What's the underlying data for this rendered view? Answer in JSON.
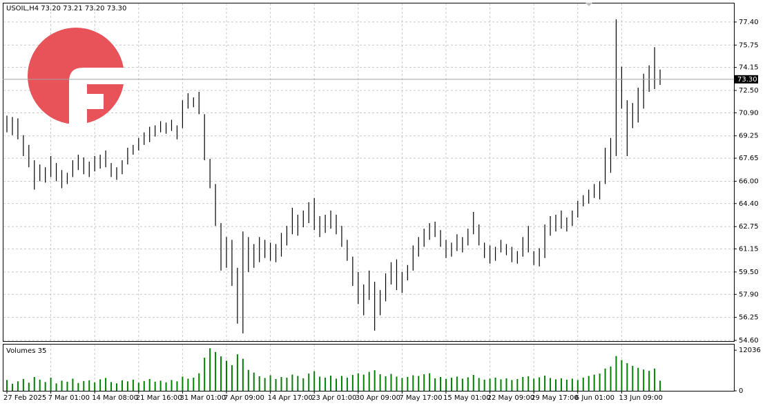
{
  "chart_data": [
    {
      "type": "ohlc",
      "title": "USOIL,H4  73.20 73.21 73.20 73.30",
      "color": "#000000",
      "grid": true,
      "categories": [
        "27 Feb 2025",
        null,
        null,
        null,
        null,
        null,
        null,
        null,
        "7 Mar 01:00",
        null,
        null,
        null,
        null,
        null,
        null,
        null,
        "14 Mar 08:00",
        null,
        null,
        null,
        null,
        null,
        null,
        null,
        "21 Mar 16:00",
        null,
        null,
        null,
        null,
        null,
        null,
        null,
        "31 Mar 01:00",
        null,
        null,
        null,
        null,
        null,
        null,
        null,
        "7 Apr 09:00",
        null,
        null,
        null,
        null,
        null,
        null,
        null,
        "14 Apr 17:00",
        null,
        null,
        null,
        null,
        null,
        null,
        null,
        "23 Apr 01:00",
        null,
        null,
        null,
        null,
        null,
        null,
        null,
        "30 Apr 09:00",
        null,
        null,
        null,
        null,
        null,
        null,
        null,
        "7 May 17:00",
        null,
        null,
        null,
        null,
        null,
        null,
        null,
        "15 May 01:00",
        null,
        null,
        null,
        null,
        null,
        null,
        null,
        "22 May 09:00",
        null,
        null,
        null,
        null,
        null,
        null,
        null,
        "29 May 17:00",
        null,
        null,
        null,
        null,
        null,
        null,
        null,
        "6 Jun 01:00",
        null,
        null,
        null,
        null,
        null,
        null,
        null,
        "13 Jun 09:00",
        null,
        null,
        null,
        null,
        null,
        null,
        null
      ],
      "high": [
        70.7,
        70.6,
        70.5,
        69.3,
        68.6,
        67.5,
        67.2,
        67.0,
        67.8,
        67.3,
        66.8,
        66.6,
        67.5,
        67.9,
        67.7,
        67.4,
        67.8,
        67.9,
        68.2,
        67.3,
        67.0,
        67.5,
        68.4,
        68.6,
        69.1,
        69.5,
        69.9,
        70.0,
        70.3,
        70.2,
        70.4,
        70.0,
        71.8,
        72.3,
        72.0,
        72.4,
        70.8,
        67.6,
        65.8,
        63.0,
        62.0,
        61.8,
        59.8,
        62.4,
        62.0,
        61.5,
        62.0,
        61.8,
        61.6,
        61.5,
        62.3,
        62.8,
        64.1,
        63.6,
        63.9,
        64.5,
        64.8,
        63.5,
        63.6,
        63.9,
        63.6,
        62.8,
        61.8,
        60.6,
        59.5,
        58.6,
        59.6,
        58.8,
        58.2,
        59.4,
        60.2,
        60.4,
        59.5,
        60.0,
        61.4,
        62.0,
        62.6,
        63.0,
        63.1,
        62.5,
        61.8,
        61.6,
        62.2,
        62.0,
        62.6,
        63.8,
        62.9,
        61.6,
        61.4,
        61.3,
        61.8,
        61.5,
        61.3,
        61.0,
        62.0,
        62.8,
        61.0,
        61.2,
        62.9,
        63.5,
        63.6,
        63.9,
        63.4,
        63.9,
        64.6,
        65.0,
        65.4,
        65.8,
        66.0,
        68.4,
        69.1,
        77.6,
        74.2,
        71.8,
        71.6,
        72.7,
        73.7,
        74.3,
        75.6,
        74.0
      ],
      "low": [
        69.5,
        69.3,
        69.0,
        67.8,
        67.0,
        65.4,
        66.0,
        65.9,
        66.3,
        66.0,
        65.5,
        65.8,
        66.3,
        66.8,
        66.5,
        66.3,
        66.7,
        66.9,
        67.0,
        66.3,
        66.1,
        66.5,
        67.2,
        67.9,
        68.2,
        68.6,
        68.8,
        69.2,
        69.5,
        69.4,
        69.6,
        69.0,
        69.8,
        71.2,
        71.3,
        70.8,
        67.5,
        65.5,
        62.8,
        59.6,
        59.8,
        58.5,
        55.8,
        55.1,
        59.5,
        59.8,
        60.2,
        60.5,
        60.3,
        60.2,
        60.6,
        61.4,
        62.2,
        62.1,
        62.7,
        63.0,
        62.5,
        62.0,
        62.3,
        62.6,
        62.2,
        61.3,
        60.3,
        58.5,
        57.2,
        56.4,
        57.5,
        55.3,
        56.4,
        57.4,
        58.6,
        58.2,
        58.0,
        58.9,
        59.6,
        60.6,
        61.3,
        61.8,
        62.0,
        61.3,
        60.5,
        60.6,
        61.0,
        60.9,
        61.4,
        62.2,
        61.4,
        60.5,
        60.1,
        60.3,
        60.9,
        60.7,
        60.2,
        60.1,
        60.6,
        60.9,
        60.0,
        59.9,
        60.5,
        62.1,
        62.4,
        62.6,
        62.4,
        62.8,
        63.4,
        64.2,
        64.4,
        64.8,
        64.7,
        65.8,
        66.6,
        67.8,
        71.2,
        67.8,
        69.8,
        70.2,
        71.2,
        72.4,
        72.6,
        72.9
      ],
      "last": {
        "value": 73.3,
        "label": "73.30"
      },
      "ylim": [
        54.55,
        78.78
      ],
      "yticks": [
        {
          "value": 77.4,
          "label": "77.40"
        },
        {
          "value": 75.75,
          "label": "75.75"
        },
        {
          "value": 74.15,
          "label": "74.15"
        },
        {
          "value": 72.5,
          "label": "72.50"
        },
        {
          "value": 70.9,
          "label": "70.90"
        },
        {
          "value": 69.25,
          "label": "69.25"
        },
        {
          "value": 67.65,
          "label": "67.65"
        },
        {
          "value": 66,
          "label": "66.00"
        },
        {
          "value": 64.4,
          "label": "64.40"
        },
        {
          "value": 62.75,
          "label": "62.75"
        },
        {
          "value": 61.15,
          "label": "61.15"
        },
        {
          "value": 59.5,
          "label": "59.50"
        },
        {
          "value": 57.9,
          "label": "57.90"
        },
        {
          "value": 56.25,
          "label": "56.25"
        },
        {
          "value": 54.6,
          "label": "54.60"
        }
      ]
    },
    {
      "type": "bar",
      "title": "Volumes 35",
      "color": "#008000",
      "values": [
        3200,
        2100,
        2800,
        3500,
        2400,
        4100,
        3300,
        2600,
        3900,
        2200,
        3000,
        2700,
        3600,
        2300,
        2900,
        3100,
        2500,
        3400,
        3800,
        2600,
        2200,
        3100,
        2800,
        3300,
        2400,
        2900,
        3500,
        2700,
        3000,
        2500,
        3200,
        2800,
        4200,
        3600,
        3900,
        5200,
        9800,
        12600,
        11500,
        10200,
        8900,
        7600,
        10800,
        9500,
        6200,
        5400,
        4300,
        3800,
        4600,
        3500,
        4100,
        3900,
        4800,
        4400,
        3700,
        5100,
        5800,
        4200,
        3900,
        4500,
        3600,
        4400,
        3900,
        4700,
        5200,
        4800,
        5600,
        6100,
        4900,
        4300,
        5000,
        4200,
        3800,
        4100,
        4600,
        4400,
        4900,
        5200,
        3700,
        4100,
        3500,
        3900,
        4200,
        3600,
        4000,
        4700,
        3800,
        3300,
        3600,
        3900,
        3400,
        3700,
        3200,
        3500,
        4100,
        4300,
        3600,
        4000,
        4500,
        3800,
        3400,
        3700,
        3300,
        3600,
        3200,
        3900,
        4400,
        4800,
        5100,
        6600,
        7200,
        10300,
        9100,
        8200,
        7400,
        6800,
        6300,
        5900,
        6600,
        3000
      ],
      "ylim": [
        0,
        13700
      ],
      "yticks": [
        12036,
        0
      ]
    }
  ]
}
